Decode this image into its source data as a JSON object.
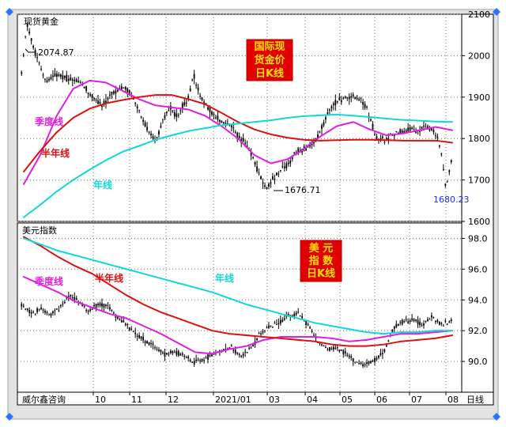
{
  "chart_data": [
    {
      "type": "candlestick",
      "panel_title": "现货黄金",
      "badge_lines": [
        "国际现",
        "货金价",
        "日K线"
      ],
      "y_axis": {
        "min": 1600,
        "max": 2100,
        "ticks": [
          1600,
          1700,
          1800,
          1900,
          2000,
          2100
        ]
      },
      "annotations": {
        "high": "2074.87",
        "low": "1676.71",
        "last": "1680.23"
      },
      "series": [
        {
          "name": "季度线",
          "color": "#e020e0",
          "values": [
            1690,
            1760,
            1855,
            1920,
            1940,
            1935,
            1915,
            1895,
            1880,
            1875,
            1870,
            1855,
            1830,
            1800,
            1760,
            1740,
            1750,
            1775,
            1805,
            1830,
            1840,
            1822,
            1808,
            1812,
            1820,
            1828,
            1820
          ]
        },
        {
          "name": "半年线",
          "color": "#dd1010",
          "values": [
            1720,
            1770,
            1815,
            1850,
            1872,
            1885,
            1893,
            1900,
            1905,
            1905,
            1895,
            1883,
            1862,
            1840,
            1822,
            1810,
            1802,
            1797,
            1795,
            1796,
            1797,
            1797,
            1796,
            1795,
            1795,
            1795,
            1790
          ]
        },
        {
          "name": "年线",
          "color": "#10d8d8",
          "values": [
            1610,
            1640,
            1672,
            1700,
            1725,
            1748,
            1768,
            1782,
            1797,
            1808,
            1818,
            1825,
            1832,
            1836,
            1840,
            1844,
            1850,
            1854,
            1856,
            1858,
            1855,
            1852,
            1848,
            1845,
            1843,
            1841,
            1840
          ]
        }
      ],
      "price_path": [
        [
          0,
          1960
        ],
        [
          0.4,
          2074.87
        ],
        [
          1.2,
          1990
        ],
        [
          1.8,
          1935
        ],
        [
          2.6,
          1955
        ],
        [
          3.4,
          1945
        ],
        [
          4.4,
          1935
        ],
        [
          5.2,
          1905
        ],
        [
          6.0,
          1880
        ],
        [
          6.8,
          1910
        ],
        [
          7.6,
          1925
        ],
        [
          8.2,
          1905
        ],
        [
          8.6,
          1880
        ],
        [
          9.0,
          1845
        ],
        [
          9.4,
          1820
        ],
        [
          10.0,
          1790
        ],
        [
          10.4,
          1835
        ],
        [
          11.0,
          1875
        ],
        [
          11.6,
          1855
        ],
        [
          12.0,
          1880
        ],
        [
          12.4,
          1895
        ],
        [
          12.8,
          1955
        ],
        [
          13.2,
          1910
        ],
        [
          13.8,
          1875
        ],
        [
          14.4,
          1855
        ],
        [
          15.0,
          1835
        ],
        [
          15.6,
          1830
        ],
        [
          16.0,
          1810
        ],
        [
          16.6,
          1790
        ],
        [
          17.0,
          1770
        ],
        [
          17.4,
          1740
        ],
        [
          17.8,
          1705
        ],
        [
          18.2,
          1676.71
        ],
        [
          18.6,
          1700
        ],
        [
          19.2,
          1720
        ],
        [
          19.8,
          1735
        ],
        [
          20.4,
          1765
        ],
        [
          21.0,
          1775
        ],
        [
          21.6,
          1785
        ],
        [
          22.2,
          1815
        ],
        [
          22.8,
          1860
        ],
        [
          23.4,
          1885
        ],
        [
          24.0,
          1900
        ],
        [
          24.6,
          1905
        ],
        [
          25.2,
          1895
        ],
        [
          25.8,
          1870
        ],
        [
          26.4,
          1800
        ],
        [
          27.0,
          1795
        ],
        [
          27.6,
          1810
        ],
        [
          28.2,
          1815
        ],
        [
          28.8,
          1825
        ],
        [
          29.4,
          1820
        ],
        [
          30.0,
          1830
        ],
        [
          30.6,
          1822
        ],
        [
          31.0,
          1800
        ],
        [
          31.3,
          1760
        ],
        [
          31.6,
          1680.23
        ],
        [
          32.0,
          1745
        ]
      ],
      "labels_positions_hint": "none"
    },
    {
      "type": "candlestick",
      "panel_title": "美元指数",
      "badge_lines": [
        "美  元",
        "指  数",
        "日K线"
      ],
      "y_axis": {
        "min": 88.0,
        "max": 99.0,
        "ticks": [
          90.0,
          92.0,
          94.0,
          96.0,
          98.0
        ]
      },
      "series": [
        {
          "name": "季度线",
          "color": "#e020e0",
          "values": [
            95.5,
            95.0,
            94.5,
            93.9,
            93.5,
            93.1,
            92.8,
            92.3,
            91.8,
            91.2,
            90.6,
            90.5,
            90.8,
            91.0,
            91.4,
            91.6,
            91.6,
            91.6,
            91.5,
            91.3,
            91.4,
            91.6,
            91.8,
            91.8,
            91.9,
            92.0
          ]
        },
        {
          "name": "半年线",
          "color": "#dd1010",
          "values": [
            98.1,
            97.5,
            96.8,
            96.2,
            95.7,
            95.0,
            94.3,
            93.7,
            93.2,
            92.8,
            92.4,
            92.0,
            91.8,
            91.7,
            91.6,
            91.5,
            91.4,
            91.3,
            91.1,
            91.0,
            91.0,
            91.1,
            91.3,
            91.4,
            91.5,
            91.7
          ]
        },
        {
          "name": "年线",
          "color": "#10d8d8",
          "values": [
            98.0,
            97.6,
            97.2,
            96.9,
            96.6,
            96.3,
            96.0,
            95.7,
            95.4,
            95.1,
            94.8,
            94.5,
            94.1,
            93.7,
            93.4,
            93.1,
            92.8,
            92.5,
            92.3,
            92.1,
            91.9,
            91.8,
            91.9,
            91.9,
            92.0,
            92.0
          ]
        }
      ],
      "price_path": [
        [
          0,
          93.7
        ],
        [
          0.8,
          93.1
        ],
        [
          1.6,
          93.4
        ],
        [
          2.4,
          93.0
        ],
        [
          3.2,
          93.5
        ],
        [
          4.0,
          94.3
        ],
        [
          4.8,
          93.9
        ],
        [
          5.6,
          93.3
        ],
        [
          6.4,
          93.7
        ],
        [
          7.2,
          93.6
        ],
        [
          8.0,
          92.9
        ],
        [
          8.8,
          92.3
        ],
        [
          9.6,
          91.8
        ],
        [
          10.4,
          91.3
        ],
        [
          11.2,
          90.9
        ],
        [
          12.0,
          90.5
        ],
        [
          12.8,
          90.6
        ],
        [
          13.6,
          90.4
        ],
        [
          14.4,
          89.9
        ],
        [
          15.2,
          90.2
        ],
        [
          16.0,
          90.4
        ],
        [
          16.8,
          90.7
        ],
        [
          17.6,
          90.9
        ],
        [
          18.4,
          90.3
        ],
        [
          19.2,
          90.8
        ],
        [
          20.0,
          91.8
        ],
        [
          20.8,
          92.3
        ],
        [
          21.6,
          92.5
        ],
        [
          22.4,
          93.0
        ],
        [
          23.2,
          93.1
        ],
        [
          24.0,
          92.4
        ],
        [
          24.8,
          91.3
        ],
        [
          25.6,
          90.8
        ],
        [
          26.4,
          90.9
        ],
        [
          27.2,
          90.5
        ],
        [
          28.0,
          90.0
        ],
        [
          28.8,
          89.8
        ],
        [
          29.6,
          90.1
        ],
        [
          30.4,
          90.7
        ],
        [
          31.2,
          92.2
        ],
        [
          32.0,
          92.6
        ],
        [
          32.8,
          92.7
        ],
        [
          33.6,
          92.4
        ],
        [
          34.4,
          92.9
        ],
        [
          35.2,
          92.4
        ],
        [
          36.0,
          92.6
        ]
      ]
    }
  ],
  "x_axis": {
    "labels": [
      "10",
      "11",
      "12",
      "2021/01",
      "03",
      "04",
      "05",
      "06",
      "07",
      "08"
    ],
    "footer_left": "威尔鑫咨询",
    "footer_right": "日线"
  }
}
